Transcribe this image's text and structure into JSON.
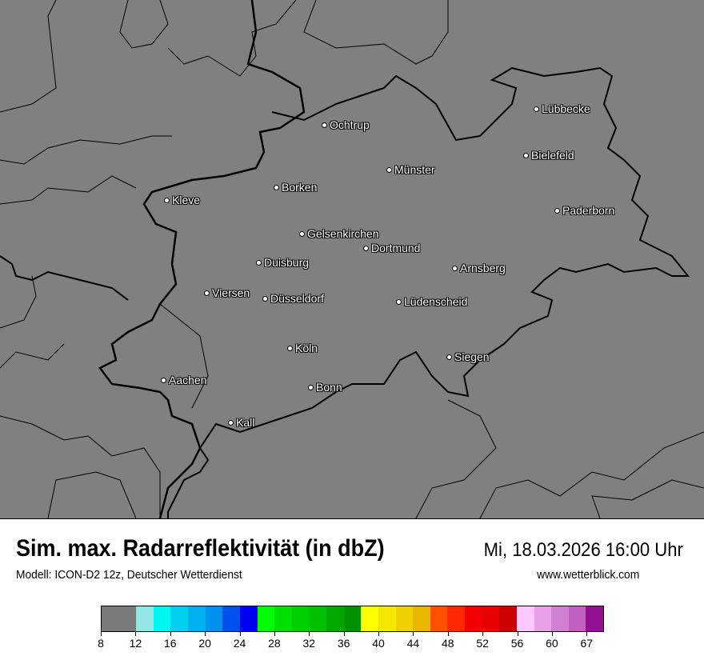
{
  "header": {
    "title": "Sim. max. Radarreflektivität (in dbZ)",
    "datetime": "Mi, 18.03.2026 16:00 Uhr",
    "model": "Modell: ICON-D2 12z, Deutscher Wetterdienst",
    "website": "www.wetterblick.com"
  },
  "map": {
    "background": "#808080",
    "cities": [
      {
        "name": "Ochtrup"
      },
      {
        "name": "Münster"
      },
      {
        "name": "Lübbecke"
      },
      {
        "name": "Bielefeld"
      },
      {
        "name": "Paderborn"
      },
      {
        "name": "Borken"
      },
      {
        "name": "Kleve"
      },
      {
        "name": "Gelsenkirchen"
      },
      {
        "name": "Dortmund"
      },
      {
        "name": "Duisburg"
      },
      {
        "name": "Arnsberg"
      },
      {
        "name": "Viersen"
      },
      {
        "name": "Düsseldorf"
      },
      {
        "name": "Lüdenscheid"
      },
      {
        "name": "Köln"
      },
      {
        "name": "Siegen"
      },
      {
        "name": "Aachen"
      },
      {
        "name": "Bonn"
      },
      {
        "name": "Kall"
      }
    ]
  },
  "legend": {
    "colors": [
      "#7a7a7a",
      "#93e6e6",
      "#00f5f0",
      "#00d0f0",
      "#00b0f0",
      "#0090f0",
      "#0050f0",
      "#0000f0",
      "#00ff00",
      "#00e000",
      "#00d000",
      "#00c000",
      "#00a800",
      "#009000",
      "#ffff00",
      "#f5e800",
      "#efd000",
      "#e8b800",
      "#ff5000",
      "#ff2800",
      "#f00000",
      "#e80000",
      "#cc0000",
      "#ffc8ff",
      "#e8a0e8",
      "#d080d0",
      "#c060c0",
      "#901090"
    ],
    "ticks": [
      "8",
      "12",
      "16",
      "20",
      "24",
      "28",
      "32",
      "36",
      "40",
      "44",
      "48",
      "52",
      "56",
      "60",
      "67"
    ]
  }
}
